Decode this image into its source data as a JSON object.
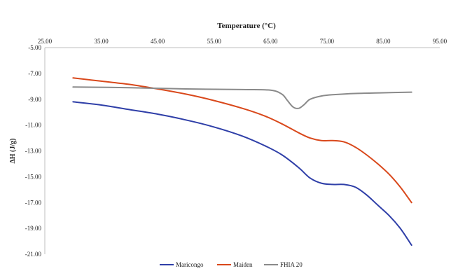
{
  "chart_data": {
    "type": "line",
    "title": "Temperature (°C)",
    "xlabel": "",
    "ylabel": "ΔH (J/g)",
    "xlim": [
      25,
      95
    ],
    "ylim": [
      -21,
      -5
    ],
    "x_ticks": [
      "25.00",
      "35.00",
      "45.00",
      "55.00",
      "65.00",
      "75.00",
      "85.00",
      "95.00"
    ],
    "y_ticks": [
      "-5.00",
      "-7.00",
      "-9.00",
      "-11.00",
      "-13.00",
      "-15.00",
      "-17.00",
      "-19.00",
      "-21.00"
    ],
    "x_axis_position": "top",
    "grid": false,
    "legend_position": "bottom-center",
    "series": [
      {
        "name": "Maricongo",
        "color": "#2f3fa8",
        "points": [
          [
            30,
            -9.2
          ],
          [
            35,
            -9.45
          ],
          [
            40,
            -9.8
          ],
          [
            45,
            -10.15
          ],
          [
            50,
            -10.6
          ],
          [
            55,
            -11.15
          ],
          [
            60,
            -11.85
          ],
          [
            64,
            -12.6
          ],
          [
            67,
            -13.3
          ],
          [
            70,
            -14.3
          ],
          [
            72,
            -15.1
          ],
          [
            74,
            -15.5
          ],
          [
            76,
            -15.6
          ],
          [
            78,
            -15.6
          ],
          [
            80,
            -15.8
          ],
          [
            82,
            -16.4
          ],
          [
            84,
            -17.2
          ],
          [
            86,
            -18.0
          ],
          [
            88,
            -19.0
          ],
          [
            90,
            -20.3
          ]
        ]
      },
      {
        "name": "Maiden",
        "color": "#d9481b",
        "points": [
          [
            30,
            -7.35
          ],
          [
            35,
            -7.6
          ],
          [
            40,
            -7.85
          ],
          [
            45,
            -8.2
          ],
          [
            50,
            -8.6
          ],
          [
            55,
            -9.1
          ],
          [
            60,
            -9.7
          ],
          [
            64,
            -10.3
          ],
          [
            67,
            -10.9
          ],
          [
            70,
            -11.6
          ],
          [
            72,
            -12.0
          ],
          [
            74,
            -12.2
          ],
          [
            76,
            -12.2
          ],
          [
            78,
            -12.3
          ],
          [
            80,
            -12.7
          ],
          [
            82,
            -13.3
          ],
          [
            84,
            -14.0
          ],
          [
            86,
            -14.8
          ],
          [
            88,
            -15.8
          ],
          [
            90,
            -17.0
          ]
        ]
      },
      {
        "name": "FHIA 20",
        "color": "#8a8a8a",
        "points": [
          [
            30,
            -8.05
          ],
          [
            40,
            -8.1
          ],
          [
            50,
            -8.2
          ],
          [
            60,
            -8.25
          ],
          [
            65,
            -8.3
          ],
          [
            67,
            -8.6
          ],
          [
            68,
            -9.1
          ],
          [
            69,
            -9.6
          ],
          [
            70,
            -9.7
          ],
          [
            71,
            -9.4
          ],
          [
            72,
            -9.0
          ],
          [
            74,
            -8.75
          ],
          [
            76,
            -8.65
          ],
          [
            80,
            -8.55
          ],
          [
            85,
            -8.5
          ],
          [
            90,
            -8.45
          ]
        ]
      }
    ]
  }
}
